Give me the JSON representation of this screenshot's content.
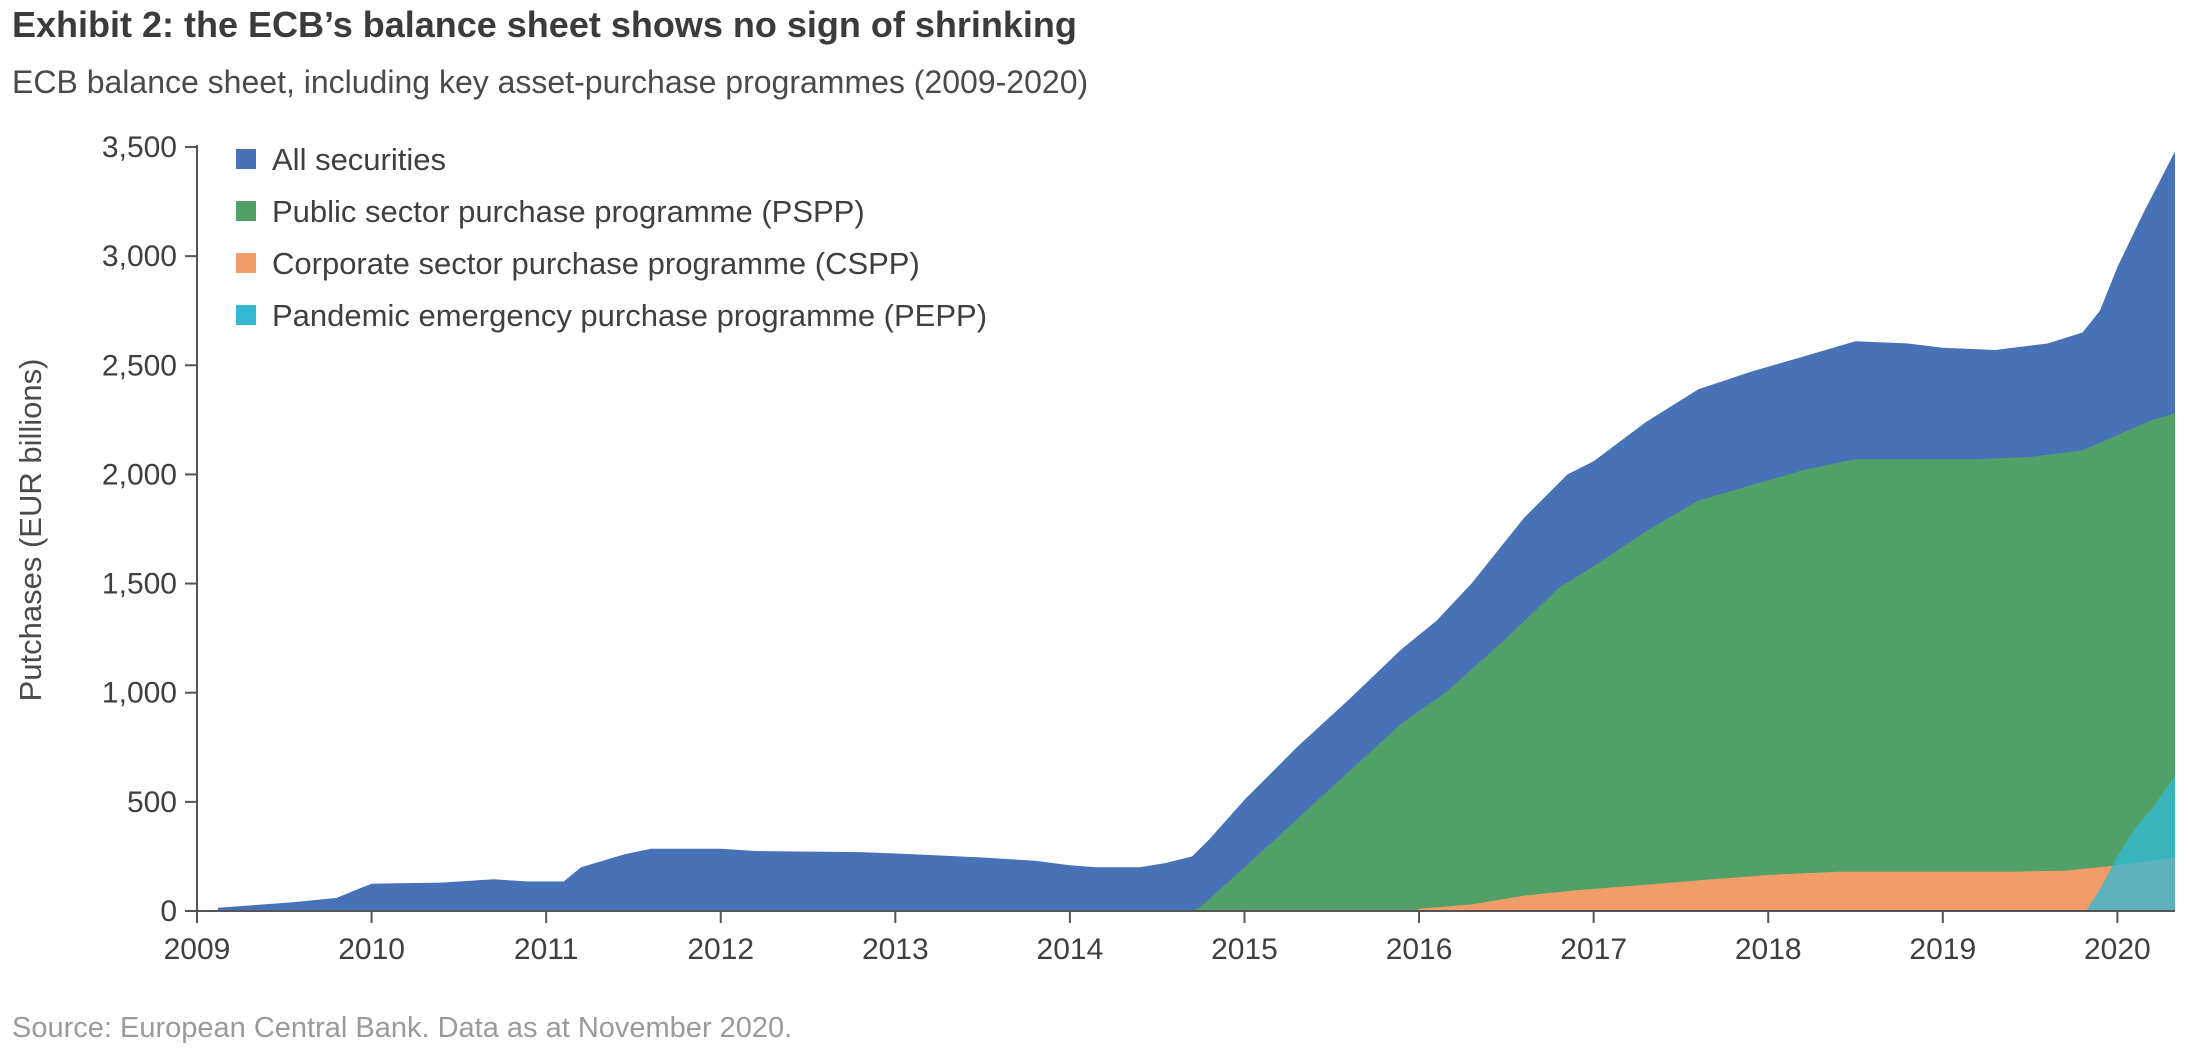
{
  "header": {
    "title": "Exhibit 2: the ECB’s balance sheet shows no sign of shrinking",
    "subtitle": "ECB balance sheet, including key asset-purchase programmes (2009-2020)"
  },
  "footer": {
    "source": "Source: European Central Bank. Data as at November 2020."
  },
  "chart_data": {
    "type": "area",
    "title": "Exhibit 2: the ECB’s balance sheet shows no sign of shrinking",
    "subtitle": "ECB balance sheet, including key asset-purchase programmes (2009-2020)",
    "xlabel": "",
    "ylabel": "Putchases (EUR billions)",
    "xlim": [
      2009.0,
      2020.33
    ],
    "ylim": [
      0,
      3500
    ],
    "x_ticks": [
      2009,
      2010,
      2011,
      2012,
      2013,
      2014,
      2015,
      2016,
      2017,
      2018,
      2019,
      2020
    ],
    "x_tick_labels": [
      "2009",
      "2010",
      "2011",
      "2012",
      "2013",
      "2014",
      "2015",
      "2016",
      "2017",
      "2018",
      "2019",
      "2020"
    ],
    "y_ticks": [
      0,
      500,
      1000,
      1500,
      2000,
      2500,
      3000,
      3500
    ],
    "y_tick_labels": [
      "0",
      "500",
      "1,000",
      "1,500",
      "2,000",
      "2,500",
      "3,000",
      "3,500"
    ],
    "grid": false,
    "legend_position": "top-left",
    "overlapping": true,
    "series": [
      {
        "name": "All securities",
        "color": "#4872B8",
        "points": [
          [
            2009.12,
            0
          ],
          [
            2009.12,
            15
          ],
          [
            2009.3,
            25
          ],
          [
            2009.55,
            40
          ],
          [
            2009.8,
            60
          ],
          [
            2009.92,
            100
          ],
          [
            2010.0,
            125
          ],
          [
            2010.4,
            130
          ],
          [
            2010.7,
            145
          ],
          [
            2010.9,
            135
          ],
          [
            2011.1,
            135
          ],
          [
            2011.2,
            200
          ],
          [
            2011.45,
            260
          ],
          [
            2011.6,
            285
          ],
          [
            2012.0,
            285
          ],
          [
            2012.2,
            275
          ],
          [
            2012.8,
            270
          ],
          [
            2013.1,
            260
          ],
          [
            2013.5,
            245
          ],
          [
            2013.8,
            230
          ],
          [
            2014.0,
            210
          ],
          [
            2014.15,
            200
          ],
          [
            2014.4,
            200
          ],
          [
            2014.55,
            220
          ],
          [
            2014.7,
            250
          ],
          [
            2014.8,
            330
          ],
          [
            2015.0,
            510
          ],
          [
            2015.3,
            750
          ],
          [
            2015.6,
            970
          ],
          [
            2015.9,
            1200
          ],
          [
            2016.1,
            1330
          ],
          [
            2016.3,
            1500
          ],
          [
            2016.6,
            1800
          ],
          [
            2016.85,
            2000
          ],
          [
            2017.0,
            2060
          ],
          [
            2017.3,
            2240
          ],
          [
            2017.6,
            2390
          ],
          [
            2017.9,
            2470
          ],
          [
            2018.2,
            2540
          ],
          [
            2018.5,
            2610
          ],
          [
            2018.8,
            2600
          ],
          [
            2019.0,
            2580
          ],
          [
            2019.3,
            2570
          ],
          [
            2019.6,
            2600
          ],
          [
            2019.8,
            2650
          ],
          [
            2019.9,
            2750
          ],
          [
            2020.0,
            2950
          ],
          [
            2020.15,
            3200
          ],
          [
            2020.33,
            3480
          ],
          [
            2020.33,
            0
          ]
        ]
      },
      {
        "name": "Public sector purchase programme (PSPP)",
        "color": "#50A068",
        "points": [
          [
            2014.7,
            0
          ],
          [
            2014.75,
            20
          ],
          [
            2015.0,
            200
          ],
          [
            2015.3,
            420
          ],
          [
            2015.6,
            640
          ],
          [
            2015.9,
            860
          ],
          [
            2016.15,
            1000
          ],
          [
            2016.5,
            1250
          ],
          [
            2016.8,
            1480
          ],
          [
            2017.0,
            1580
          ],
          [
            2017.3,
            1740
          ],
          [
            2017.6,
            1880
          ],
          [
            2017.9,
            1950
          ],
          [
            2018.2,
            2020
          ],
          [
            2018.5,
            2070
          ],
          [
            2018.8,
            2070
          ],
          [
            2019.2,
            2070
          ],
          [
            2019.5,
            2080
          ],
          [
            2019.8,
            2110
          ],
          [
            2020.0,
            2180
          ],
          [
            2020.2,
            2250
          ],
          [
            2020.33,
            2280
          ],
          [
            2020.33,
            0
          ]
        ]
      },
      {
        "name": "Corporate sector purchase programme (CSPP)",
        "color": "#F29D68",
        "points": [
          [
            2015.98,
            0
          ],
          [
            2016.0,
            10
          ],
          [
            2016.3,
            30
          ],
          [
            2016.6,
            70
          ],
          [
            2016.9,
            95
          ],
          [
            2017.3,
            120
          ],
          [
            2017.6,
            140
          ],
          [
            2018.0,
            165
          ],
          [
            2018.4,
            180
          ],
          [
            2019.0,
            180
          ],
          [
            2019.4,
            180
          ],
          [
            2019.7,
            185
          ],
          [
            2019.9,
            200
          ],
          [
            2020.1,
            220
          ],
          [
            2020.33,
            245
          ],
          [
            2020.33,
            0
          ]
        ]
      },
      {
        "name": "Pandemic emergency purchase programme (PEPP)",
        "color": "#33B8D4",
        "points": [
          [
            2019.82,
            0
          ],
          [
            2019.9,
            100
          ],
          [
            2020.0,
            250
          ],
          [
            2020.1,
            380
          ],
          [
            2020.2,
            470
          ],
          [
            2020.33,
            620
          ],
          [
            2020.33,
            0
          ]
        ]
      }
    ]
  }
}
